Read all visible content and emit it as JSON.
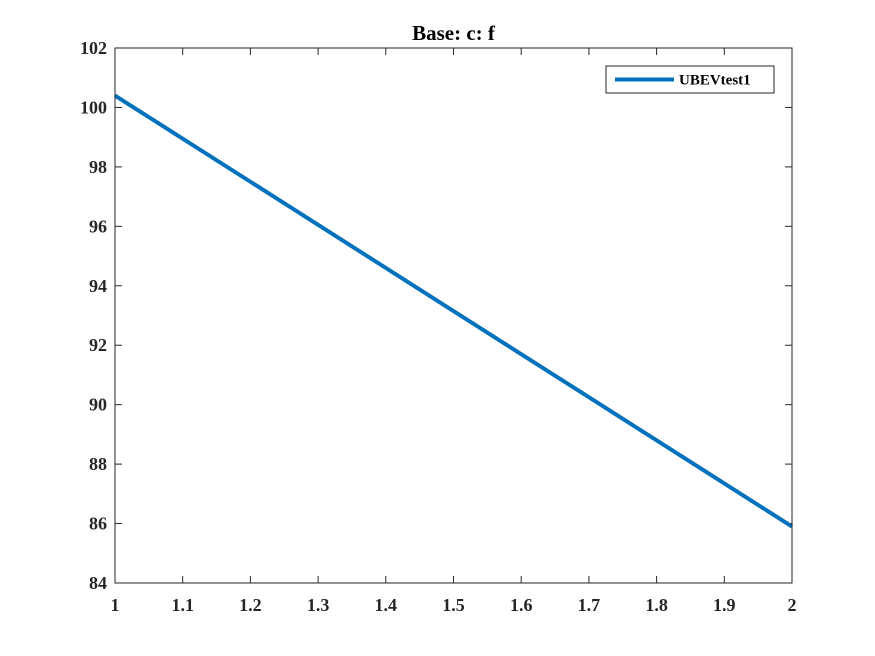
{
  "chart_data": {
    "type": "line",
    "title": "Base: c: f",
    "xlabel": "",
    "ylabel": "",
    "xlim": [
      1,
      2
    ],
    "ylim": [
      84,
      102
    ],
    "xticks": [
      1,
      1.1,
      1.2,
      1.3,
      1.4,
      1.5,
      1.6,
      1.7,
      1.8,
      1.9,
      2
    ],
    "xtick_labels": [
      "1",
      "1.1",
      "1.2",
      "1.3",
      "1.4",
      "1.5",
      "1.6",
      "1.7",
      "1.8",
      "1.9",
      "2"
    ],
    "yticks": [
      84,
      86,
      88,
      90,
      92,
      94,
      96,
      98,
      100,
      102
    ],
    "ytick_labels": [
      "84",
      "86",
      "88",
      "90",
      "92",
      "94",
      "96",
      "98",
      "100",
      "102"
    ],
    "grid": false,
    "legend_position": "top-right",
    "series": [
      {
        "name": "UBEVtest1",
        "color": "#0072BD",
        "x": [
          1,
          1.1,
          1.2,
          1.3,
          1.4,
          1.5,
          1.6,
          1.7,
          1.8,
          1.9,
          2
        ],
        "y": [
          100.4,
          98.95,
          97.5,
          96.05,
          94.6,
          93.15,
          91.7,
          90.25,
          88.8,
          87.35,
          85.9
        ]
      }
    ]
  }
}
